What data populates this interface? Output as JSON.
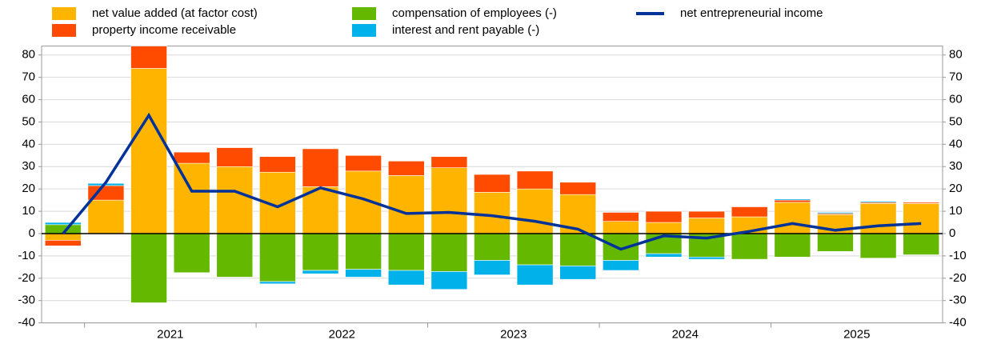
{
  "chart_data": {
    "type": "bar",
    "categories": [
      null,
      null,
      null,
      null,
      null,
      null,
      null,
      null,
      null,
      null,
      null,
      null,
      null,
      null,
      null,
      null,
      null,
      null,
      null,
      null,
      null
    ],
    "year_labels": [
      "2021",
      "2022",
      "2023",
      "2024",
      "2025"
    ],
    "series": [
      {
        "name": "net value added (at factor cost)",
        "color": "#ffb400",
        "values": [
          -3,
          15,
          74,
          31.5,
          30,
          27.5,
          21,
          28,
          26,
          29.5,
          18.5,
          20,
          17.5,
          5.5,
          5,
          7,
          7.5,
          14,
          8.5,
          13.5,
          13.5
        ]
      },
      {
        "name": "property income receivable",
        "color": "#ff4b00",
        "values": [
          -2.5,
          6.5,
          10,
          5,
          8.5,
          7,
          17,
          7,
          6.5,
          5,
          8,
          8,
          5.5,
          4,
          5,
          3,
          4.5,
          1,
          0.5,
          0.5,
          0.5
        ]
      },
      {
        "name": "compensation of employees (-)",
        "color": "#65b800",
        "values": [
          4,
          0,
          -31,
          -17.5,
          -19.5,
          -21.5,
          -16.5,
          -16,
          -16.5,
          -17,
          -12,
          -14,
          -14.5,
          -12,
          -9,
          -10.5,
          -11.5,
          -10.5,
          -8,
          -11,
          -9.5
        ]
      },
      {
        "name": "interest and rent payable (-)",
        "color": "#00b1ea",
        "values": [
          1,
          1,
          0,
          0,
          0,
          -1,
          -1.5,
          -3.5,
          -6.5,
          -8,
          -6.5,
          -9,
          -6,
          -4.5,
          -1.5,
          -1,
          0,
          0.5,
          0.5,
          0.5,
          0
        ]
      },
      {
        "name": "net entrepreneurial income",
        "color": "#003299",
        "type": "line",
        "values": [
          0,
          23,
          53,
          19,
          19,
          12,
          20.5,
          15.5,
          9,
          9.5,
          8,
          5.5,
          2,
          -7,
          -1,
          -2,
          1,
          4.5,
          1.5,
          3.5,
          4.5
        ]
      }
    ],
    "ylim": [
      -40,
      84
    ],
    "yticks": [
      -40,
      -30,
      -20,
      -10,
      0,
      10,
      20,
      30,
      40,
      50,
      60,
      70,
      80
    ],
    "grid": true
  }
}
